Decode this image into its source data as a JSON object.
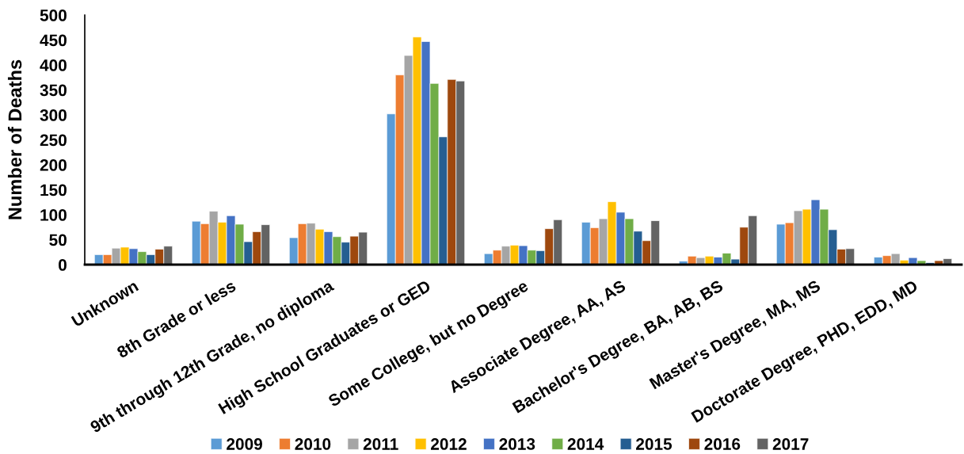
{
  "chart_data": {
    "type": "bar",
    "ylabel": "Number of Deaths",
    "categories": [
      "Unknown",
      "8th Grade or less",
      "9th through 12th Grade, no diploma",
      "High School Graduates or GED",
      "Some College, but no Degree",
      "Associate Degree, AA, AS",
      "Bachelor's Degree, BA, AB, BS",
      "Master's Degree, MA, MS",
      "Doctorate Degree, PHD, EDD, MD"
    ],
    "series": [
      {
        "name": "2009",
        "color": "#5b9bd5",
        "values": [
          20,
          87,
          54,
          302,
          22,
          85,
          7,
          81,
          15
        ]
      },
      {
        "name": "2010",
        "color": "#ed7d31",
        "values": [
          20,
          82,
          82,
          380,
          29,
          74,
          17,
          84,
          18
        ]
      },
      {
        "name": "2011",
        "color": "#a5a5a5",
        "values": [
          33,
          107,
          83,
          419,
          37,
          92,
          14,
          108,
          22
        ]
      },
      {
        "name": "2012",
        "color": "#ffc000",
        "values": [
          35,
          85,
          71,
          456,
          39,
          126,
          17,
          111,
          9
        ]
      },
      {
        "name": "2013",
        "color": "#4472c4",
        "values": [
          32,
          98,
          66,
          447,
          38,
          105,
          15,
          130,
          14
        ]
      },
      {
        "name": "2014",
        "color": "#70ad47",
        "values": [
          26,
          81,
          56,
          363,
          29,
          92,
          23,
          111,
          8
        ]
      },
      {
        "name": "2015",
        "color": "#255e91",
        "values": [
          20,
          46,
          45,
          256,
          28,
          67,
          11,
          70,
          4
        ]
      },
      {
        "name": "2016",
        "color": "#9e480e",
        "values": [
          31,
          66,
          57,
          371,
          72,
          48,
          75,
          31,
          8
        ]
      },
      {
        "name": "2017",
        "color": "#636363",
        "values": [
          37,
          80,
          65,
          368,
          90,
          88,
          98,
          32,
          12
        ]
      }
    ],
    "ylim": [
      0,
      500
    ],
    "yticks": [
      0,
      50,
      100,
      150,
      200,
      250,
      300,
      350,
      400,
      450,
      500
    ],
    "grid": false,
    "legend": "bottom"
  }
}
